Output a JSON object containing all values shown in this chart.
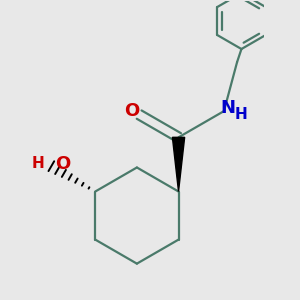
{
  "background_color": "#e8e8e8",
  "bond_color": "#4a7a6a",
  "oxygen_color": "#cc0000",
  "nitrogen_color": "#0000cc",
  "black_color": "#000000",
  "line_width": 1.6,
  "figsize": [
    3.0,
    3.0
  ],
  "dpi": 100,
  "xlim": [
    -1.2,
    1.4
  ],
  "ylim": [
    -1.6,
    1.8
  ]
}
